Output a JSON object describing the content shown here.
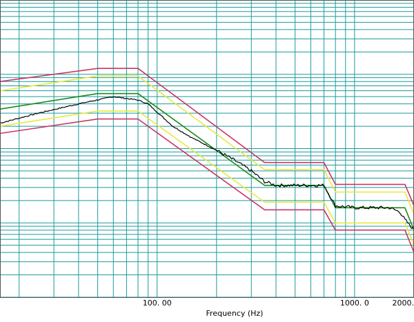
{
  "chart_data": {
    "type": "line",
    "x_scale": "log",
    "y_scale": "log",
    "xlim": [
      16,
      2000
    ],
    "ylim": [
      0.0001,
      1
    ],
    "grid": true,
    "xlabel": "Frequency  (Hz)",
    "x_tick_labels": [
      {
        "value": 100,
        "label": "100. 00"
      },
      {
        "value": 1000,
        "label": "1000. 0"
      },
      {
        "value": 2000,
        "label": "2000."
      }
    ],
    "series": [
      {
        "role": "upper-abort",
        "color": "#cc3366",
        "x": [
          16,
          50,
          80,
          350,
          700,
          800,
          1800,
          2000
        ],
        "y": [
          0.08,
          0.12,
          0.12,
          0.0065,
          0.0065,
          0.0033,
          0.0033,
          0.0017
        ]
      },
      {
        "role": "upper-alarm",
        "color": "#e8e840",
        "x": [
          16,
          50,
          80,
          350,
          700,
          800,
          1800,
          2000
        ],
        "y": [
          0.06,
          0.095,
          0.095,
          0.0052,
          0.0052,
          0.0026,
          0.0026,
          0.0013
        ]
      },
      {
        "role": "reference",
        "color": "#1a8a1a",
        "x": [
          16,
          50,
          80,
          350,
          700,
          800,
          1800,
          2000
        ],
        "y": [
          0.034,
          0.055,
          0.055,
          0.0032,
          0.0032,
          0.0016,
          0.0016,
          0.0008
        ]
      },
      {
        "role": "lower-alarm",
        "color": "#e8e840",
        "x": [
          16,
          50,
          80,
          350,
          700,
          800,
          1800,
          2000
        ],
        "y": [
          0.02,
          0.032,
          0.032,
          0.0019,
          0.0019,
          0.001,
          0.001,
          0.0005
        ]
      },
      {
        "role": "lower-abort",
        "color": "#cc3366",
        "x": [
          16,
          50,
          80,
          350,
          700,
          800,
          1800,
          2000
        ],
        "y": [
          0.016,
          0.025,
          0.025,
          0.0015,
          0.0015,
          0.0008,
          0.0008,
          0.0004
        ]
      },
      {
        "role": "control",
        "color": "#000000",
        "x": [
          16,
          25,
          40,
          60,
          80,
          90,
          100,
          120,
          150,
          200,
          250,
          300,
          350,
          400,
          500,
          600,
          700,
          750,
          800,
          1000,
          1200,
          1500,
          1700,
          1800,
          2000
        ],
        "y": [
          0.022,
          0.03,
          0.04,
          0.05,
          0.045,
          0.04,
          0.031,
          0.02,
          0.014,
          0.0095,
          0.0068,
          0.005,
          0.0036,
          0.0032,
          0.0032,
          0.0032,
          0.0032,
          0.0023,
          0.0017,
          0.0016,
          0.0016,
          0.0016,
          0.0014,
          0.0011,
          0.0008
        ]
      }
    ]
  },
  "colors": {
    "grid": "#1a9a9a",
    "frame": "#555555",
    "background": "#ffffff"
  }
}
